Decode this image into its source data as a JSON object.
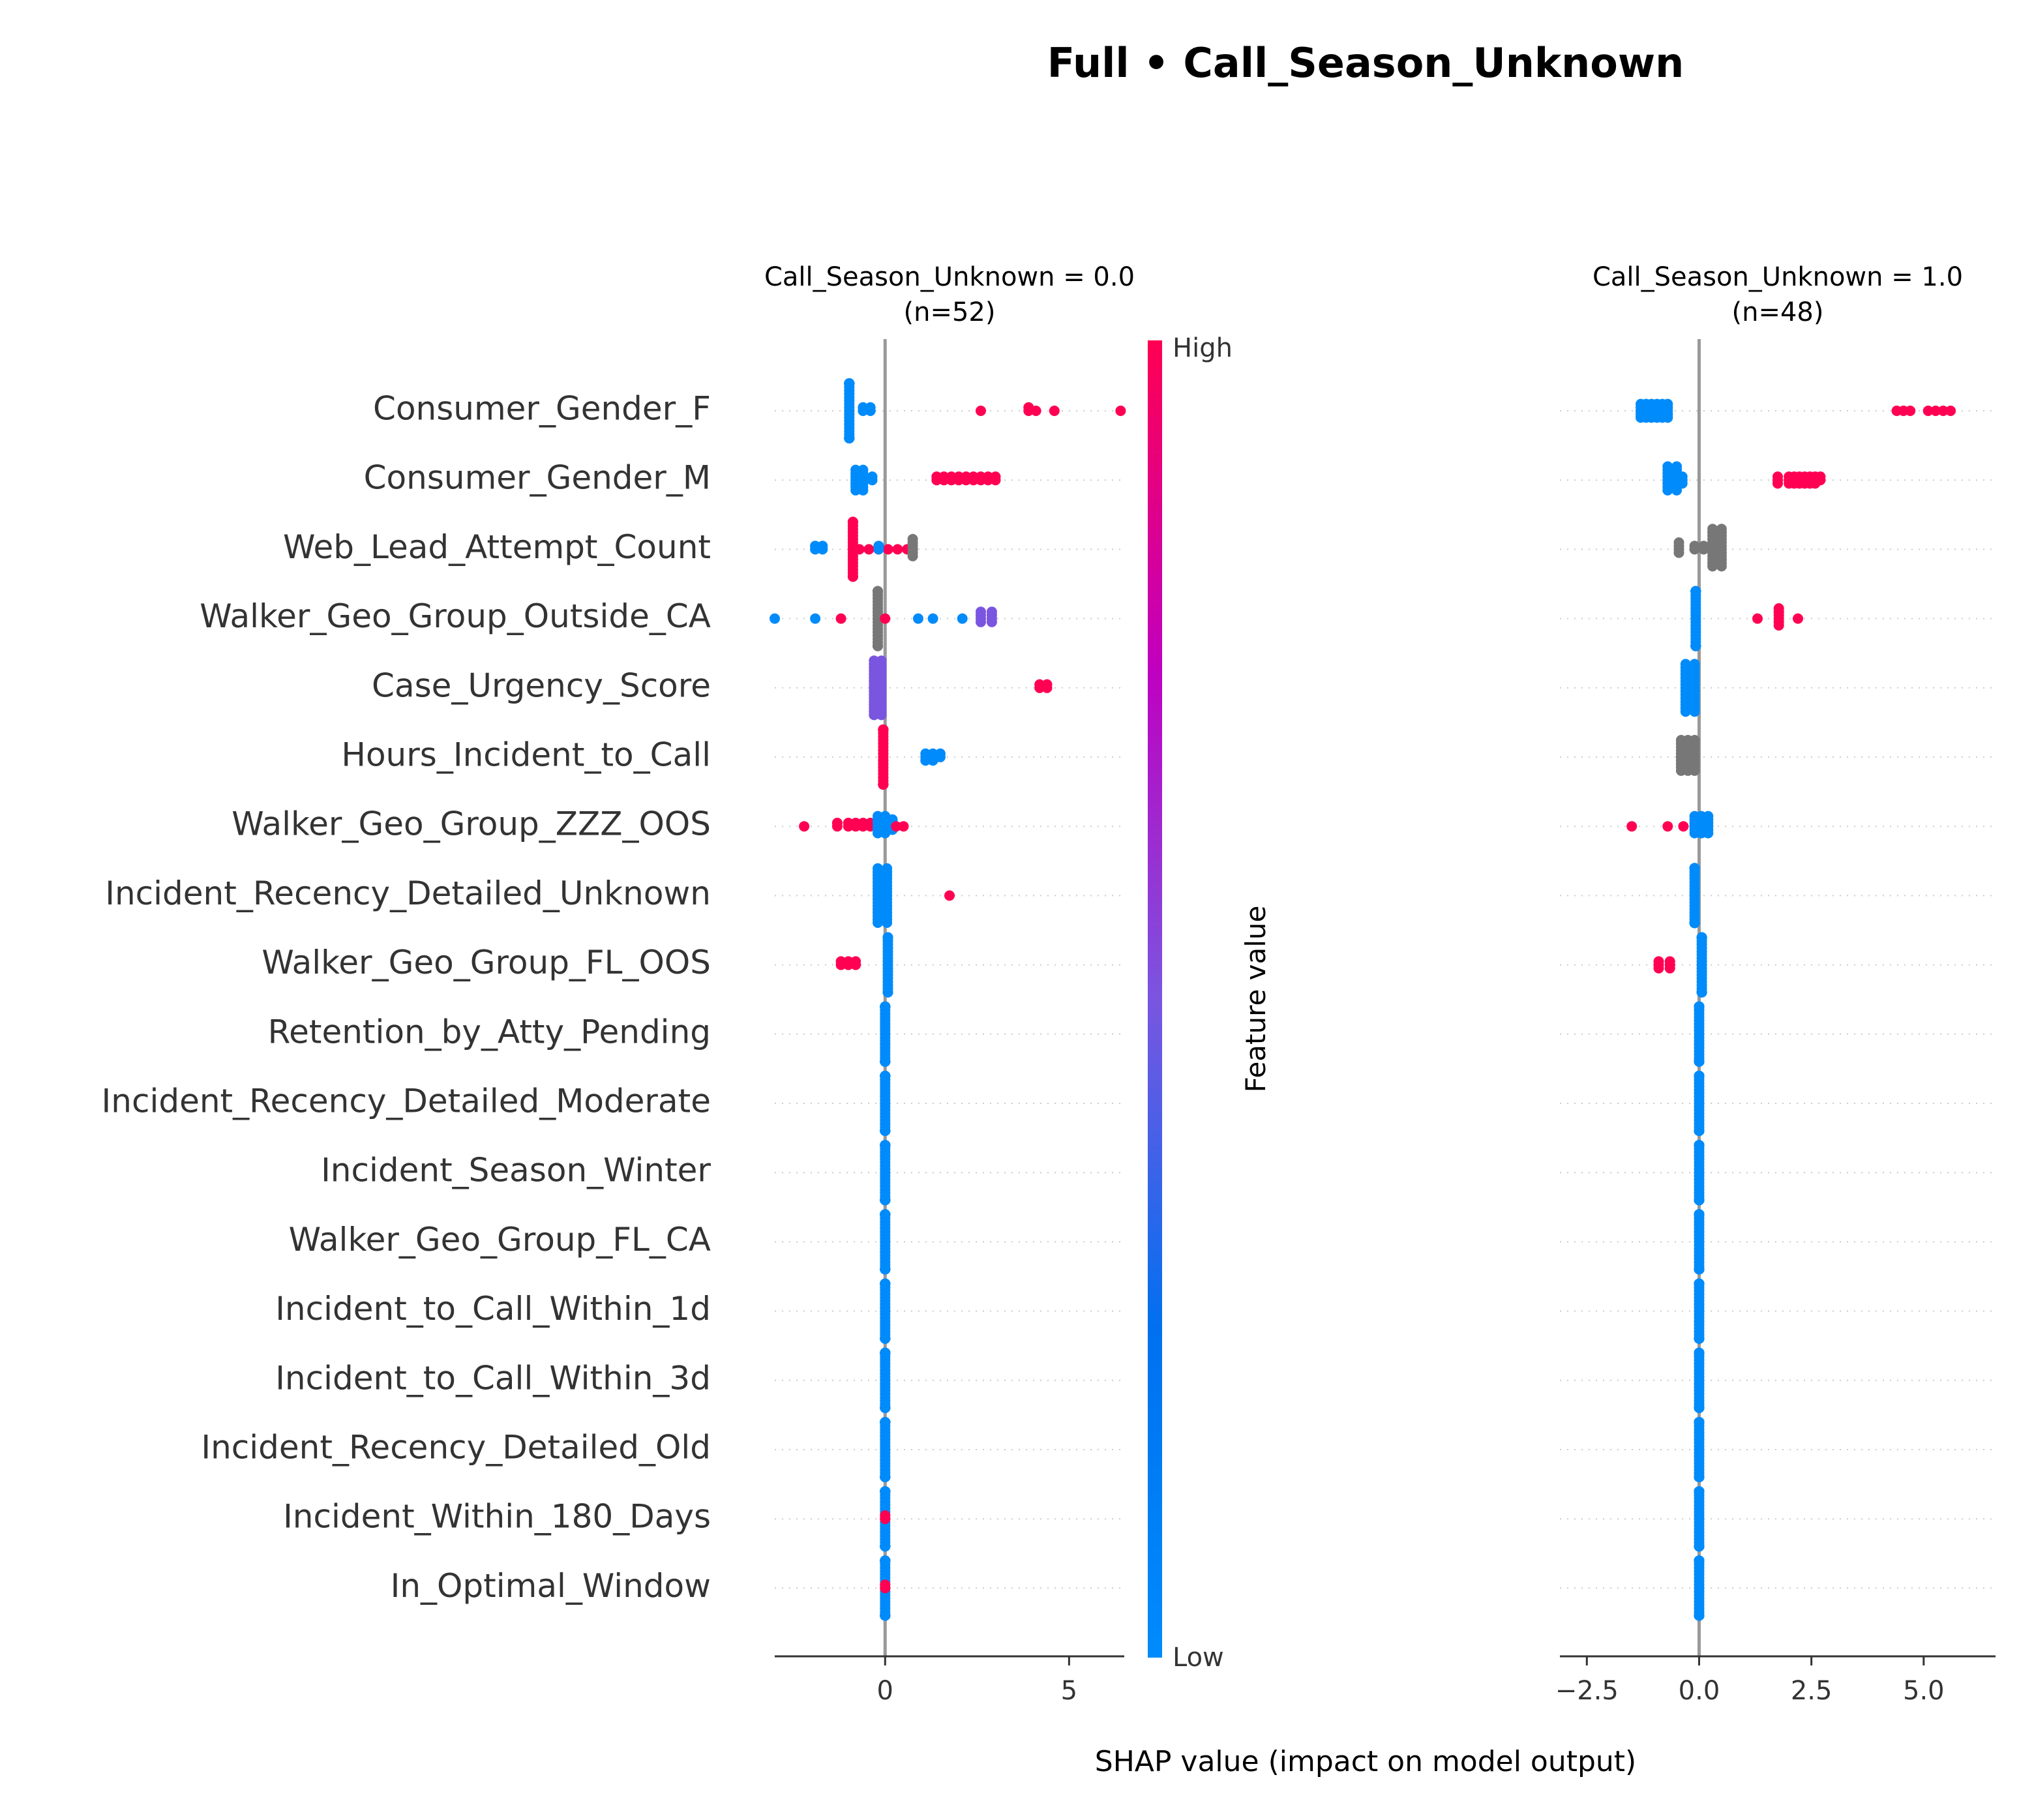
{
  "figure": {
    "title": "Full • Call_Season_Unknown",
    "xlabel": "SHAP value (impact on model output)",
    "colorbar": {
      "label": "Feature value",
      "high_label": "High",
      "low_label": "Low",
      "high_color": "#ff0052",
      "mid_color": "#c000c0",
      "low_color": "#008bfb"
    }
  },
  "chart_data": {
    "type": "scatter",
    "subtype": "shap-beeswarm",
    "features": [
      "Consumer_Gender_F",
      "Consumer_Gender_M",
      "Web_Lead_Attempt_Count",
      "Walker_Geo_Group_Outside_CA",
      "Case_Urgency_Score",
      "Hours_Incident_to_Call",
      "Walker_Geo_Group_ZZZ_OOS",
      "Incident_Recency_Detailed_Unknown",
      "Walker_Geo_Group_FL_OOS",
      "Retention_by_Atty_Pending",
      "Incident_Recency_Detailed_Moderate",
      "Incident_Season_Winter",
      "Walker_Geo_Group_FL_CA",
      "Incident_to_Call_Within_1d",
      "Incident_to_Call_Within_3d",
      "Incident_Recency_Detailed_Old",
      "Incident_Within_180_Days",
      "In_Optimal_Window"
    ],
    "colors": {
      "high": "#ff0052",
      "low": "#008bfb",
      "missing": "#777777",
      "mid": "#7a55e0"
    },
    "panels": [
      {
        "title_line1": "Call_Season_Unknown = 0.0",
        "title_line2": "(n=52)",
        "xlim": [
          -3.0,
          6.5
        ],
        "ticks": [
          0,
          5
        ],
        "tick_labels": [
          "0",
          "5"
        ],
        "rows": [
          {
            "clusters": [
              [
                -1.05,
                -0.9,
                30,
                "low"
              ],
              [
                -0.6,
                -0.4,
                4,
                "low"
              ],
              [
                2.6,
                2.6,
                1,
                "high"
              ],
              [
                3.9,
                4.1,
                3,
                "high"
              ],
              [
                4.6,
                4.6,
                1,
                "high"
              ],
              [
                6.4,
                6.4,
                1,
                "high"
              ]
            ]
          },
          {
            "clusters": [
              [
                -0.8,
                -0.6,
                14,
                "low"
              ],
              [
                -0.4,
                -0.3,
                2,
                "low"
              ],
              [
                1.4,
                3.0,
                18,
                "high"
              ]
            ]
          },
          {
            "clusters": [
              [
                -1.9,
                -1.7,
                4,
                "low"
              ],
              [
                -0.9,
                -0.85,
                20,
                "high"
              ],
              [
                -0.7,
                0.6,
                6,
                "high"
              ],
              [
                -0.2,
                -0.15,
                2,
                "low"
              ],
              [
                0.7,
                0.8,
                6,
                "missing"
              ]
            ]
          },
          {
            "clusters": [
              [
                -3.0,
                -3.0,
                1,
                "low"
              ],
              [
                -1.9,
                -1.9,
                1,
                "low"
              ],
              [
                -1.2,
                -1.2,
                1,
                "high"
              ],
              [
                -0.25,
                -0.15,
                24,
                "missing"
              ],
              [
                0.0,
                0.0,
                1,
                "high"
              ],
              [
                0.9,
                0.9,
                1,
                "low"
              ],
              [
                1.3,
                1.3,
                1,
                "low"
              ],
              [
                2.1,
                2.1,
                1,
                "low"
              ],
              [
                2.6,
                2.9,
                8,
                "mid"
              ]
            ]
          },
          {
            "clusters": [
              [
                -0.3,
                -0.1,
                34,
                "mid"
              ],
              [
                4.2,
                4.4,
                4,
                "high"
              ]
            ]
          },
          {
            "clusters": [
              [
                -0.1,
                0.0,
                40,
                "high"
              ],
              [
                1.1,
                1.5,
                8,
                "low"
              ]
            ]
          },
          {
            "clusters": [
              [
                -2.2,
                -2.2,
                1,
                "high"
              ],
              [
                -1.3,
                -1.0,
                4,
                "high"
              ],
              [
                -0.8,
                -0.4,
                6,
                "high"
              ],
              [
                -0.2,
                0.2,
                16,
                "low"
              ],
              [
                0.3,
                0.5,
                2,
                "high"
              ]
            ]
          },
          {
            "clusters": [
              [
                -0.2,
                0.05,
                34,
                "low"
              ],
              [
                1.75,
                1.75,
                1,
                "high"
              ]
            ]
          },
          {
            "clusters": [
              [
                -1.2,
                -0.8,
                6,
                "high"
              ],
              [
                0.0,
                0.15,
                30,
                "low"
              ]
            ]
          },
          {
            "clusters": [
              [
                0.0,
                0.0,
                52,
                "low"
              ]
            ]
          },
          {
            "clusters": [
              [
                0.0,
                0.0,
                52,
                "low"
              ]
            ]
          },
          {
            "clusters": [
              [
                0.0,
                0.0,
                52,
                "low"
              ]
            ]
          },
          {
            "clusters": [
              [
                0.0,
                0.0,
                52,
                "low"
              ]
            ]
          },
          {
            "clusters": [
              [
                0.0,
                0.0,
                52,
                "low"
              ]
            ]
          },
          {
            "clusters": [
              [
                0.0,
                0.0,
                52,
                "low"
              ]
            ]
          },
          {
            "clusters": [
              [
                0.0,
                0.0,
                52,
                "low"
              ]
            ]
          },
          {
            "clusters": [
              [
                0.0,
                0.0,
                48,
                "low"
              ],
              [
                0.0,
                0.0,
                2,
                "high"
              ]
            ]
          },
          {
            "clusters": [
              [
                0.0,
                0.0,
                48,
                "low"
              ],
              [
                0.0,
                0.0,
                2,
                "high"
              ]
            ]
          }
        ]
      },
      {
        "title_line1": "Call_Season_Unknown = 1.0",
        "title_line2": "(n=48)",
        "xlim": [
          -3.1,
          6.6
        ],
        "ticks": [
          -2.5,
          0,
          2.5,
          5
        ],
        "tick_labels": [
          "−2.5",
          "0.0",
          "2.5",
          "5.0"
        ],
        "rows": [
          {
            "clusters": [
              [
                -1.3,
                -0.7,
                30,
                "low"
              ],
              [
                4.4,
                4.7,
                3,
                "high"
              ],
              [
                5.1,
                5.6,
                4,
                "high"
              ]
            ]
          },
          {
            "clusters": [
              [
                -0.7,
                -0.5,
                16,
                "low"
              ],
              [
                -0.45,
                -0.3,
                3,
                "low"
              ],
              [
                1.7,
                1.8,
                3,
                "high"
              ],
              [
                2.0,
                2.7,
                20,
                "high"
              ]
            ]
          },
          {
            "clusters": [
              [
                -0.5,
                -0.4,
                4,
                "missing"
              ],
              [
                -0.1,
                0.1,
                4,
                "missing"
              ],
              [
                0.3,
                0.5,
                24,
                "missing"
              ]
            ]
          },
          {
            "clusters": [
              [
                -0.1,
                -0.05,
                36,
                "low"
              ],
              [
                1.3,
                1.3,
                1,
                "high"
              ],
              [
                1.7,
                1.85,
                6,
                "high"
              ],
              [
                2.2,
                2.2,
                1,
                "high"
              ]
            ]
          },
          {
            "clusters": [
              [
                -0.3,
                -0.1,
                30,
                "low"
              ]
            ]
          },
          {
            "clusters": [
              [
                -0.4,
                -0.1,
                30,
                "missing"
              ]
            ]
          },
          {
            "clusters": [
              [
                -1.5,
                -1.5,
                1,
                "high"
              ],
              [
                -0.7,
                -0.7,
                1,
                "high"
              ],
              [
                -0.35,
                -0.35,
                1,
                "high"
              ],
              [
                -0.1,
                0.2,
                18,
                "low"
              ]
            ]
          },
          {
            "clusters": [
              [
                -0.15,
                -0.05,
                30,
                "low"
              ]
            ]
          },
          {
            "clusters": [
              [
                -0.9,
                -0.65,
                6,
                "high"
              ],
              [
                0.0,
                0.12,
                30,
                "low"
              ]
            ]
          },
          {
            "clusters": [
              [
                0.0,
                0.0,
                48,
                "low"
              ]
            ]
          },
          {
            "clusters": [
              [
                0.0,
                0.0,
                48,
                "low"
              ]
            ]
          },
          {
            "clusters": [
              [
                0.0,
                0.0,
                48,
                "low"
              ]
            ]
          },
          {
            "clusters": [
              [
                0.0,
                0.0,
                48,
                "low"
              ]
            ]
          },
          {
            "clusters": [
              [
                0.0,
                0.0,
                48,
                "low"
              ]
            ]
          },
          {
            "clusters": [
              [
                0.0,
                0.0,
                48,
                "low"
              ]
            ]
          },
          {
            "clusters": [
              [
                0.0,
                0.0,
                48,
                "low"
              ]
            ]
          },
          {
            "clusters": [
              [
                0.0,
                0.0,
                48,
                "low"
              ]
            ]
          },
          {
            "clusters": [
              [
                0.0,
                0.0,
                48,
                "low"
              ]
            ]
          }
        ]
      }
    ]
  }
}
